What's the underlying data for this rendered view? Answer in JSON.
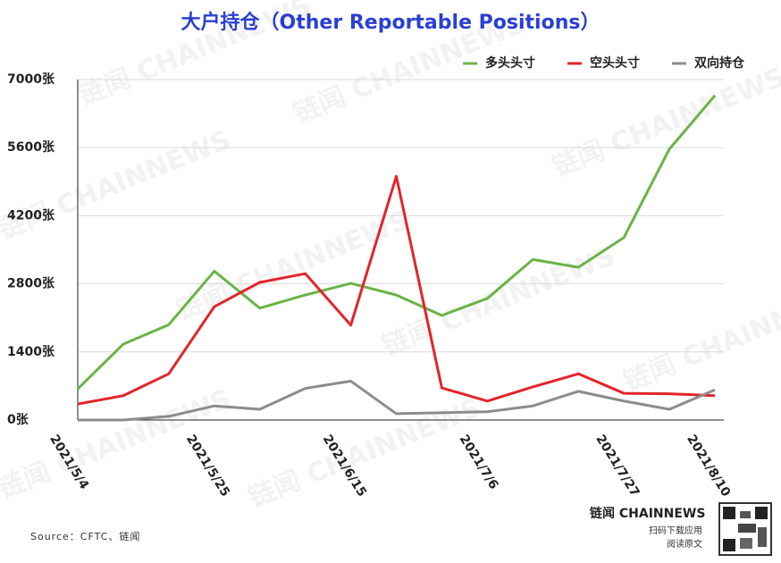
{
  "chart_data": {
    "type": "line",
    "title": "大户持仓（Other Reportable Positions）",
    "categories": [
      "2021/5/4",
      null,
      null,
      "2021/5/25",
      null,
      null,
      "2021/6/15",
      null,
      null,
      "2021/7/6",
      null,
      null,
      "2021/7/27",
      null,
      "2021/8/10"
    ],
    "series": [
      {
        "name": "多头头寸",
        "color": "#6ab446",
        "values": [
          640,
          1560,
          1960,
          3060,
          2300,
          2570,
          2810,
          2570,
          2150,
          2500,
          3300,
          3140,
          3750,
          5570,
          6670
        ]
      },
      {
        "name": "空头头寸",
        "color": "#e3242b",
        "values": [
          330,
          500,
          950,
          2330,
          2830,
          3010,
          1950,
          5010,
          660,
          390,
          680,
          950,
          550,
          540,
          500
        ]
      },
      {
        "name": "双向持仓",
        "color": "#8c8c8c",
        "values": [
          0,
          0,
          75,
          290,
          220,
          650,
          800,
          130,
          150,
          170,
          290,
          590,
          390,
          220,
          620
        ]
      }
    ],
    "ylim": [
      0,
      7000
    ],
    "yticks": [
      {
        "value": 0,
        "label": "0张"
      },
      {
        "value": 1400,
        "label": "1400张"
      },
      {
        "value": 2800,
        "label": "2800张"
      },
      {
        "value": 4200,
        "label": "4200张"
      },
      {
        "value": 5600,
        "label": "5600张"
      },
      {
        "value": 7000,
        "label": "7000张"
      }
    ],
    "grid": true,
    "legend": "top-right",
    "source": "Source：CFTC、链闻",
    "watermark": "链闻 CHAINNEWS",
    "brand": "链闻 CHAINNEWS",
    "brand_lines": [
      "扫码下载应用",
      "阅读原文"
    ]
  }
}
